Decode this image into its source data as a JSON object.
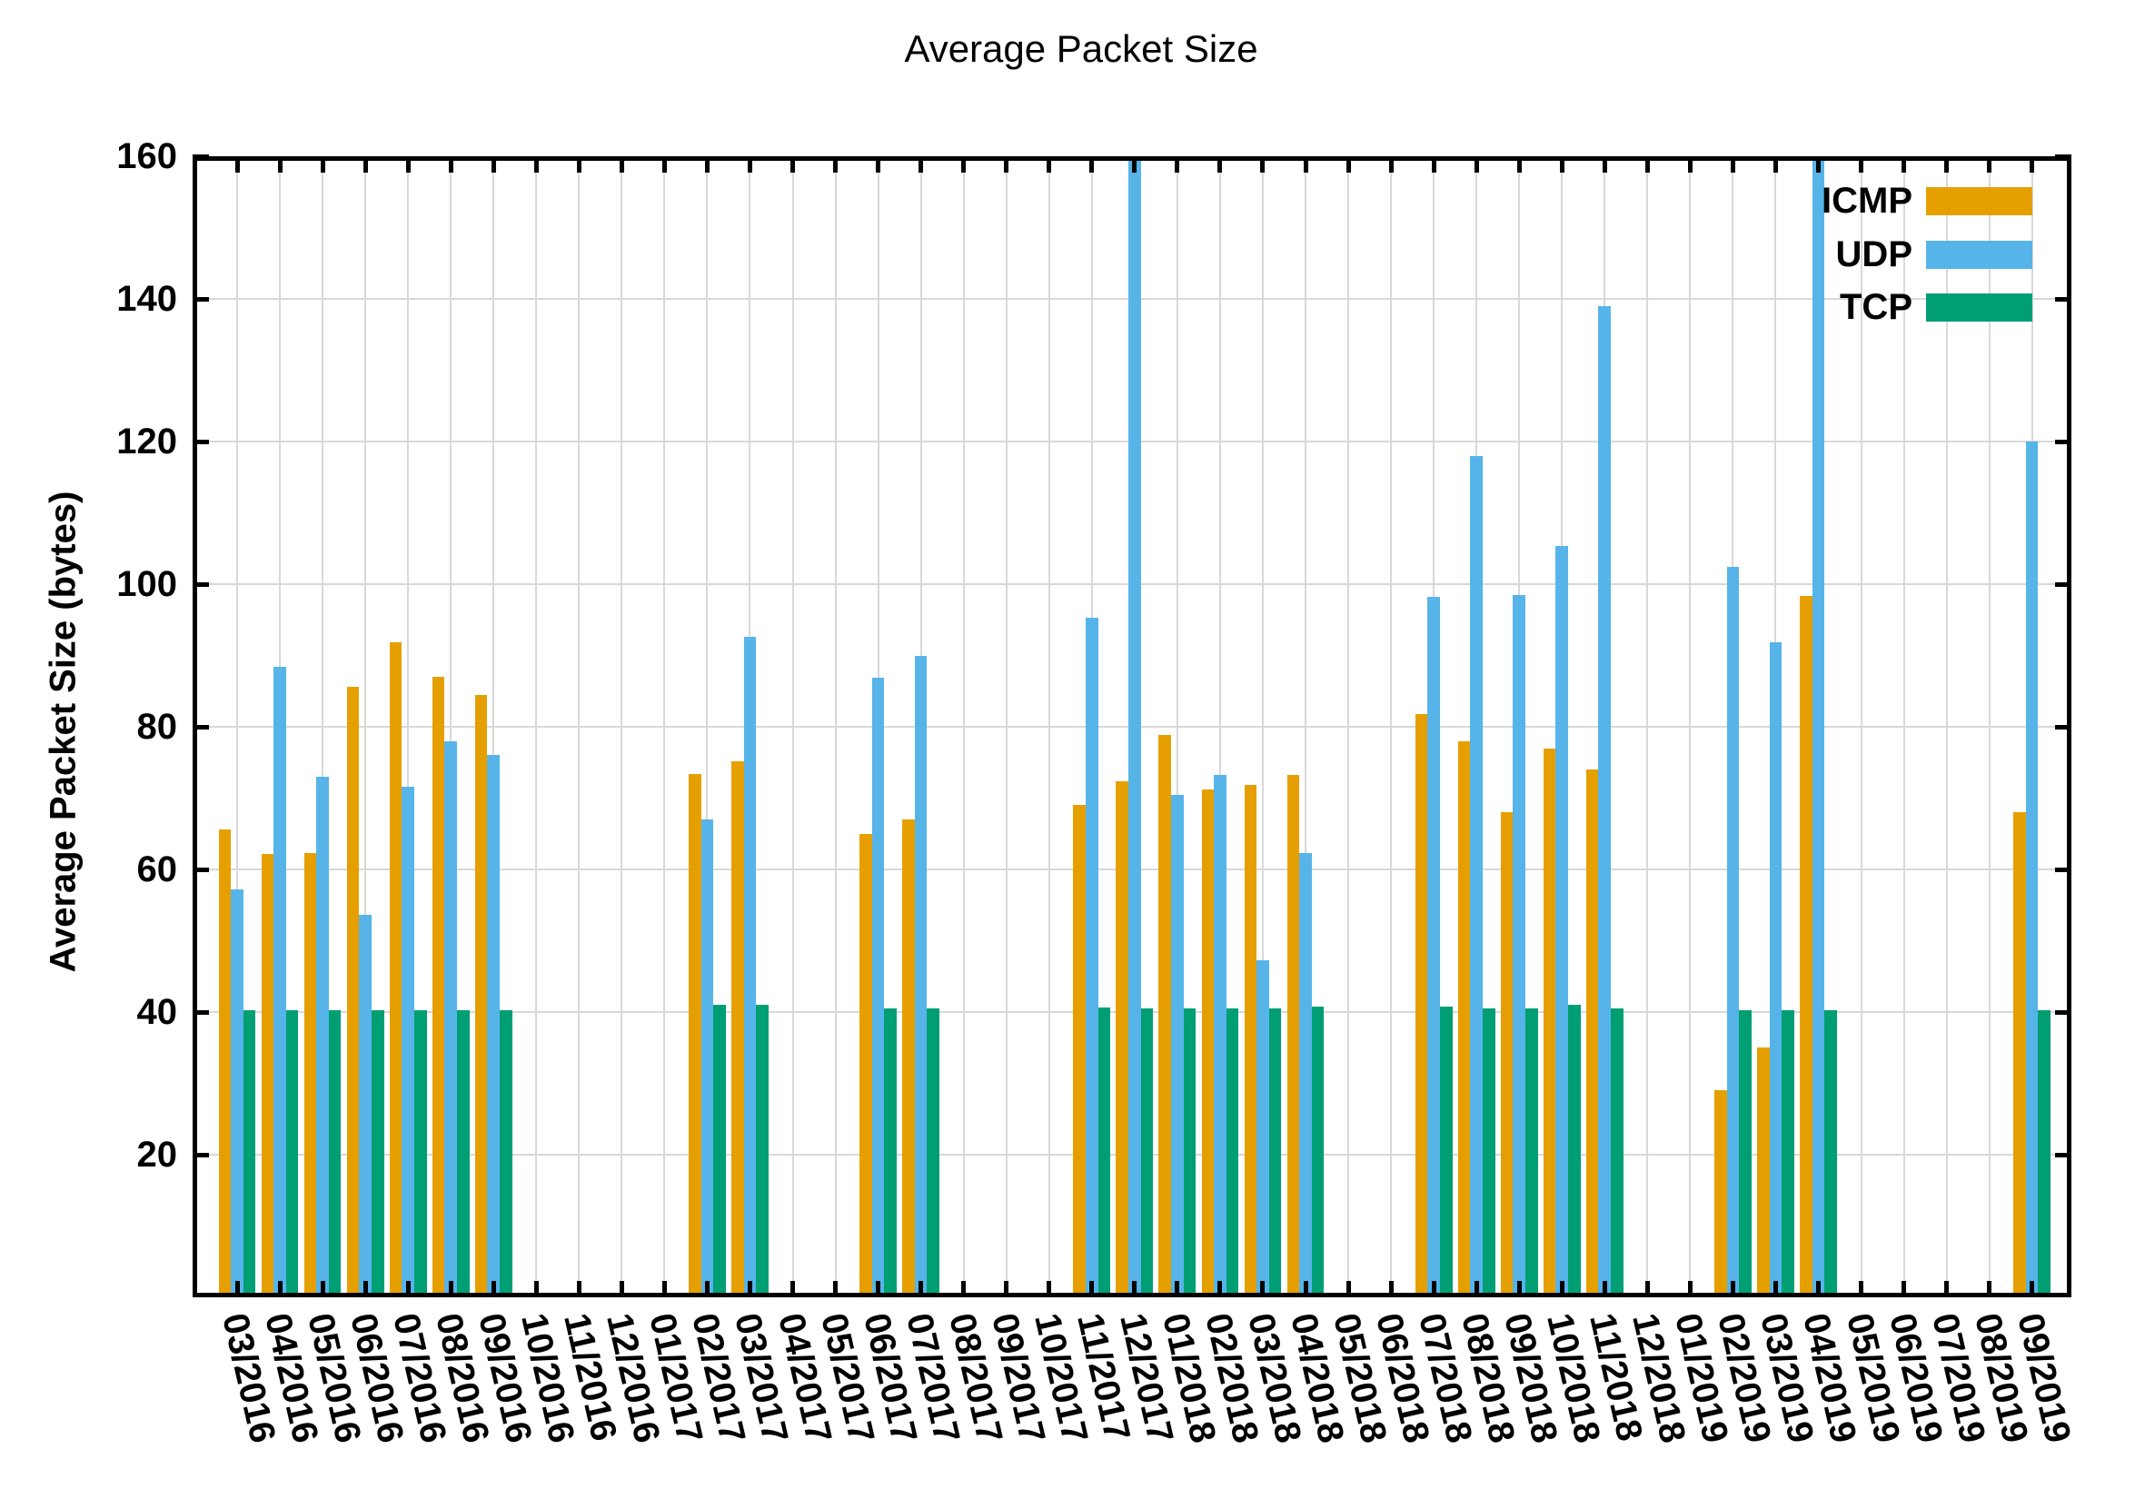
{
  "title": "Average Packet Size",
  "axes": {
    "y_label": "Average Packet Size (bytes)",
    "y_ticks": [
      20,
      40,
      60,
      80,
      100,
      120,
      140,
      160
    ],
    "y_min": 0,
    "y_max": 160,
    "grid": true,
    "x_tick_rotation_deg": 77
  },
  "legend": {
    "position": "inside-top-right",
    "items": [
      {
        "label": "ICMP",
        "color": "#E69F00"
      },
      {
        "label": "UDP",
        "color": "#56B4E9"
      },
      {
        "label": "TCP",
        "color": "#009E73"
      }
    ]
  },
  "chart_data": {
    "type": "bar",
    "title": "Average Packet Size",
    "xlabel": "",
    "ylabel": "Average Packet Size (bytes)",
    "ylim": [
      0,
      160
    ],
    "grid": true,
    "legend_position": "inside-top-right",
    "categories": [
      "03/2016",
      "04/2016",
      "05/2016",
      "06/2016",
      "07/2016",
      "08/2016",
      "09/2016",
      "10/2016",
      "11/2016",
      "12/2016",
      "01/2017",
      "02/2017",
      "03/2017",
      "04/2017",
      "05/2017",
      "06/2017",
      "07/2017",
      "08/2017",
      "09/2017",
      "10/2017",
      "11/2017",
      "12/2017",
      "01/2018",
      "02/2018",
      "03/2018",
      "04/2018",
      "05/2018",
      "06/2018",
      "07/2018",
      "08/2018",
      "09/2018",
      "10/2018",
      "11/2018",
      "12/2018",
      "01/2019",
      "02/2019",
      "03/2019",
      "04/2019",
      "05/2019",
      "06/2019",
      "07/2019",
      "08/2019",
      "09/2019"
    ],
    "series": [
      {
        "name": "ICMP",
        "color": "#E69F00",
        "values": [
          65.6,
          62.2,
          62.3,
          85.6,
          91.8,
          87.0,
          84.4,
          null,
          null,
          null,
          null,
          73.4,
          75.1,
          null,
          null,
          65.0,
          67.0,
          null,
          null,
          null,
          69.0,
          72.4,
          78.8,
          71.2,
          71.8,
          73.2,
          null,
          null,
          81.8,
          78.0,
          68.0,
          77.0,
          74.0,
          null,
          null,
          29.0,
          35.0,
          98.3,
          null,
          null,
          null,
          null,
          68.0
        ]
      },
      {
        "name": "UDP",
        "color": "#56B4E9",
        "values": [
          57.2,
          88.4,
          73.0,
          53.6,
          71.6,
          77.9,
          76.0,
          null,
          null,
          null,
          null,
          67.0,
          92.6,
          null,
          null,
          86.9,
          90.0,
          null,
          null,
          null,
          95.3,
          160,
          70.4,
          73.3,
          47.3,
          62.3,
          null,
          null,
          98.2,
          118.0,
          98.5,
          105.3,
          139.0,
          null,
          null,
          102.4,
          91.8,
          160,
          null,
          null,
          null,
          null,
          120.0
        ]
      },
      {
        "name": "TCP",
        "color": "#009E73",
        "values": [
          40.2,
          40.2,
          40.2,
          40.2,
          40.2,
          40.2,
          40.2,
          null,
          null,
          null,
          null,
          41.0,
          41.0,
          null,
          null,
          40.5,
          40.5,
          null,
          null,
          null,
          40.7,
          40.5,
          40.5,
          40.5,
          40.5,
          40.8,
          null,
          null,
          40.8,
          40.5,
          40.5,
          41.0,
          40.5,
          null,
          null,
          40.3,
          40.3,
          40.3,
          null,
          null,
          null,
          null,
          40.2
        ]
      }
    ],
    "clipped_bars": [
      {
        "series": "UDP",
        "category": "12/2017"
      },
      {
        "series": "UDP",
        "category": "04/2019"
      }
    ],
    "note": "null = no bar drawn for that month; clipped bars exceed the y-axis maximum of 160 and are cut off at the plot top"
  }
}
